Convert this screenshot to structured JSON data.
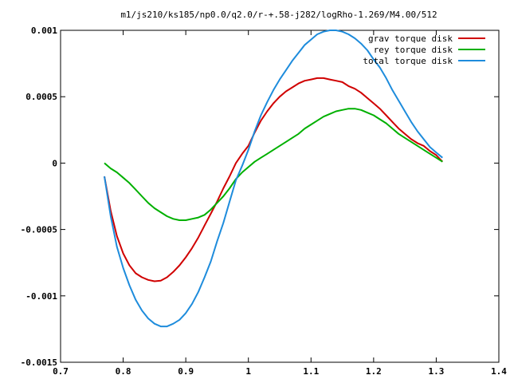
{
  "chart_data": {
    "type": "line",
    "title": "m1/js210/ks185/np0.0/q2.0/r-+.58-j282/logRho-1.269/M4.00/512",
    "xlabel": "",
    "ylabel": "",
    "xlim": [
      0.7,
      1.4
    ],
    "ylim": [
      -0.0015,
      0.001
    ],
    "xticks": [
      "0.7",
      "0.8",
      "0.9",
      "1",
      "1.1",
      "1.2",
      "1.3",
      "1.4"
    ],
    "yticks": [
      "0.001",
      "0.0005",
      "0",
      "-0.0005",
      "-0.001",
      "-0.0015"
    ],
    "grid": false,
    "legend_position": "top-right",
    "series": [
      {
        "name": "grav torque disk",
        "color": "#d00000",
        "x": [
          0.77,
          0.78,
          0.79,
          0.8,
          0.81,
          0.82,
          0.83,
          0.84,
          0.85,
          0.86,
          0.87,
          0.88,
          0.89,
          0.9,
          0.91,
          0.92,
          0.93,
          0.94,
          0.95,
          0.96,
          0.97,
          0.98,
          0.99,
          1.0,
          1.01,
          1.02,
          1.03,
          1.04,
          1.05,
          1.06,
          1.07,
          1.08,
          1.09,
          1.1,
          1.11,
          1.12,
          1.13,
          1.14,
          1.15,
          1.16,
          1.17,
          1.18,
          1.19,
          1.2,
          1.21,
          1.22,
          1.23,
          1.24,
          1.25,
          1.26,
          1.27,
          1.28,
          1.29,
          1.3,
          1.31
        ],
        "values": [
          -0.0001,
          -0.00036,
          -0.00055,
          -0.00068,
          -0.00077,
          -0.00083,
          -0.00086,
          -0.00088,
          -0.00089,
          -0.000885,
          -0.00086,
          -0.00082,
          -0.00077,
          -0.00071,
          -0.00064,
          -0.00056,
          -0.00047,
          -0.00038,
          -0.00029,
          -0.00019,
          -0.0001,
          0.0,
          7e-05,
          0.00013,
          0.00023,
          0.00032,
          0.00039,
          0.00045,
          0.0005,
          0.00054,
          0.00057,
          0.0006,
          0.00062,
          0.00063,
          0.00064,
          0.00064,
          0.00063,
          0.00062,
          0.00061,
          0.00058,
          0.00056,
          0.00053,
          0.00049,
          0.00045,
          0.00041,
          0.00036,
          0.00031,
          0.00026,
          0.00022,
          0.00018,
          0.00015,
          0.00013,
          9e-05,
          6e-05,
          1e-05
        ]
      },
      {
        "name": "rey torque disk",
        "color": "#00b000",
        "x": [
          0.77,
          0.78,
          0.79,
          0.8,
          0.81,
          0.82,
          0.83,
          0.84,
          0.85,
          0.86,
          0.87,
          0.88,
          0.89,
          0.9,
          0.91,
          0.92,
          0.93,
          0.94,
          0.95,
          0.96,
          0.97,
          0.98,
          0.99,
          1.0,
          1.01,
          1.02,
          1.03,
          1.04,
          1.05,
          1.06,
          1.07,
          1.08,
          1.09,
          1.1,
          1.11,
          1.12,
          1.13,
          1.14,
          1.15,
          1.16,
          1.17,
          1.18,
          1.19,
          1.2,
          1.21,
          1.22,
          1.23,
          1.24,
          1.25,
          1.26,
          1.27,
          1.28,
          1.29,
          1.3,
          1.31
        ],
        "values": [
          0.0,
          -4e-05,
          -7e-05,
          -0.00011,
          -0.00015,
          -0.0002,
          -0.00025,
          -0.0003,
          -0.00034,
          -0.00037,
          -0.0004,
          -0.00042,
          -0.00043,
          -0.00043,
          -0.00042,
          -0.00041,
          -0.00039,
          -0.00035,
          -0.0003,
          -0.00025,
          -0.00019,
          -0.00012,
          -7e-05,
          -3e-05,
          1e-05,
          4e-05,
          7e-05,
          0.0001,
          0.00013,
          0.00016,
          0.00019,
          0.00022,
          0.00026,
          0.00029,
          0.00032,
          0.00035,
          0.00037,
          0.00039,
          0.0004,
          0.00041,
          0.00041,
          0.0004,
          0.00038,
          0.00036,
          0.00033,
          0.0003,
          0.00026,
          0.00022,
          0.00019,
          0.00016,
          0.00013,
          0.0001,
          7e-05,
          4e-05,
          1e-05
        ]
      },
      {
        "name": "total torque disk",
        "color": "#1e8cdc",
        "x": [
          0.77,
          0.78,
          0.79,
          0.8,
          0.81,
          0.82,
          0.83,
          0.84,
          0.85,
          0.86,
          0.87,
          0.88,
          0.89,
          0.9,
          0.91,
          0.92,
          0.93,
          0.94,
          0.95,
          0.96,
          0.97,
          0.98,
          0.99,
          1.0,
          1.01,
          1.02,
          1.03,
          1.04,
          1.05,
          1.06,
          1.07,
          1.08,
          1.09,
          1.1,
          1.11,
          1.12,
          1.13,
          1.14,
          1.15,
          1.16,
          1.17,
          1.18,
          1.19,
          1.2,
          1.21,
          1.22,
          1.23,
          1.24,
          1.25,
          1.26,
          1.27,
          1.28,
          1.29,
          1.3,
          1.31
        ],
        "values": [
          -0.0001,
          -0.0004,
          -0.00063,
          -0.00079,
          -0.00092,
          -0.00103,
          -0.00111,
          -0.00117,
          -0.00121,
          -0.00123,
          -0.00123,
          -0.00121,
          -0.00118,
          -0.00113,
          -0.00106,
          -0.00097,
          -0.00086,
          -0.00074,
          -0.00059,
          -0.00045,
          -0.00029,
          -0.00013,
          -2e-05,
          0.0001,
          0.00024,
          0.00036,
          0.00046,
          0.00055,
          0.00063,
          0.0007,
          0.00077,
          0.00083,
          0.00089,
          0.00093,
          0.00097,
          0.00099,
          0.001,
          0.001,
          0.00099,
          0.00097,
          0.00094,
          0.0009,
          0.00085,
          0.00078,
          0.00072,
          0.00064,
          0.00055,
          0.00047,
          0.00039,
          0.00031,
          0.00024,
          0.00018,
          0.00012,
          8e-05,
          4e-05
        ]
      }
    ]
  }
}
